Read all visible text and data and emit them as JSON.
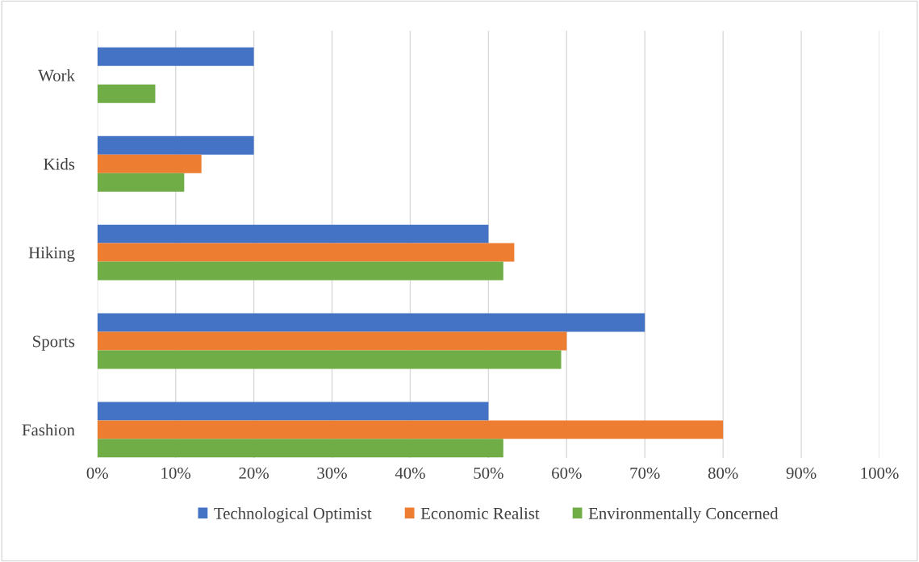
{
  "chart_data": {
    "type": "bar",
    "orientation": "horizontal",
    "categories": [
      "Work",
      "Kids",
      "Hiking",
      "Sports",
      "Fashion"
    ],
    "series": [
      {
        "name": "Technological Optimist",
        "color": "#4472c4",
        "values": [
          20,
          20,
          50,
          70,
          50
        ]
      },
      {
        "name": "Economic Realist",
        "color": "#ed7d31",
        "values": [
          null,
          13.3,
          53.3,
          60,
          80
        ]
      },
      {
        "name": "Environmentally Concerned",
        "color": "#70ad47",
        "values": [
          7.4,
          11.1,
          51.9,
          59.3,
          51.9
        ]
      }
    ],
    "xlim": [
      0,
      100
    ],
    "xticks": [
      {
        "value": 0,
        "label": "0%"
      },
      {
        "value": 10,
        "label": "10%"
      },
      {
        "value": 20,
        "label": "20%"
      },
      {
        "value": 30,
        "label": "30%"
      },
      {
        "value": 40,
        "label": "40%"
      },
      {
        "value": 50,
        "label": "50%"
      },
      {
        "value": 60,
        "label": "60%"
      },
      {
        "value": 70,
        "label": "70%"
      },
      {
        "value": 80,
        "label": "80%"
      },
      {
        "value": 90,
        "label": "90%"
      },
      {
        "value": 100,
        "label": "100%"
      }
    ],
    "grid": "x",
    "legend": "bottom"
  }
}
